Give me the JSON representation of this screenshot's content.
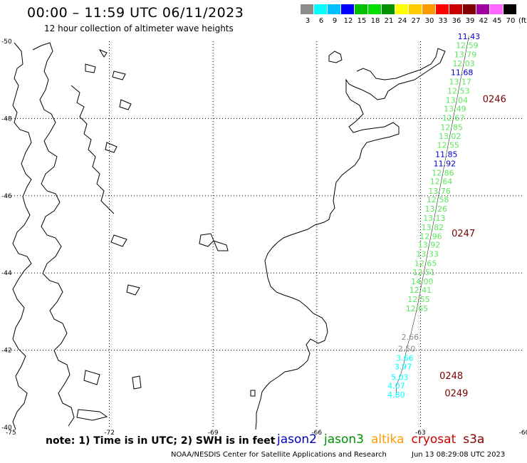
{
  "header": {
    "title": "00:00 – 11:59 UTC 06/11/2023",
    "subtitle": "12 hour collection of altimeter wave heights"
  },
  "color_scale": {
    "labels": [
      "3",
      "6",
      "9",
      "12",
      "15",
      "18",
      "21",
      "24",
      "27",
      "30",
      "33",
      "36",
      "39",
      "42",
      "45",
      "70"
    ],
    "unit": "(ft)",
    "colors": [
      "#8c8c8c",
      "#00ffff",
      "#00bfff",
      "#0000ff",
      "#00c000",
      "#00e000",
      "#009000",
      "#ffff00",
      "#ffcc00",
      "#ff9900",
      "#ff0000",
      "#c80000",
      "#800000",
      "#a000a0",
      "#ff66ff",
      "#000000"
    ]
  },
  "chart_data": {
    "type": "scatter",
    "title": "00:00 – 11:59 UTC 06/11/2023",
    "subtitle": "12 hour collection of altimeter wave heights",
    "xlim": [
      -75,
      -60
    ],
    "ylim": [
      -50,
      -40
    ],
    "x_ticks": [
      "-75",
      "-72",
      "-69",
      "-66",
      "-63",
      "-60"
    ],
    "y_ticks": [
      "-40",
      "-42",
      "-44",
      "-46",
      "-48",
      "-50"
    ],
    "grid": true,
    "points": [
      {
        "lon": -63.7,
        "lat": -40.85,
        "swh": "4.80",
        "color": "#00ffff"
      },
      {
        "lon": -63.7,
        "lat": -41.08,
        "swh": "4.07",
        "color": "#00ffff"
      },
      {
        "lon": -63.6,
        "lat": -41.3,
        "swh": "5.03",
        "color": "#00ffff"
      },
      {
        "lon": -63.5,
        "lat": -41.58,
        "swh": "3.97",
        "color": "#00ffff"
      },
      {
        "lon": -63.45,
        "lat": -41.8,
        "swh": "3.66",
        "color": "#00ffff"
      },
      {
        "lon": -63.4,
        "lat": -42.04,
        "swh": "2.50",
        "color": "#8c8c8c"
      },
      {
        "lon": -63.3,
        "lat": -42.34,
        "swh": "2.66",
        "color": "#8c8c8c"
      },
      {
        "lon": -63.1,
        "lat": -43.08,
        "swh": "12.65",
        "color": "#5ce65c"
      },
      {
        "lon": -63.05,
        "lat": -43.32,
        "swh": "12.55",
        "color": "#5ce65c"
      },
      {
        "lon": -63.0,
        "lat": -43.56,
        "swh": "12.41",
        "color": "#5ce65c"
      },
      {
        "lon": -62.95,
        "lat": -43.78,
        "swh": "14.00",
        "color": "#5ce65c"
      },
      {
        "lon": -62.9,
        "lat": -44.02,
        "swh": "12.51",
        "color": "#5ce65c"
      },
      {
        "lon": -62.85,
        "lat": -44.25,
        "swh": "12.65",
        "color": "#5ce65c"
      },
      {
        "lon": -62.8,
        "lat": -44.49,
        "swh": "13.33",
        "color": "#5ce65c"
      },
      {
        "lon": -62.75,
        "lat": -44.73,
        "swh": "13.92",
        "color": "#5ce65c"
      },
      {
        "lon": -62.7,
        "lat": -44.95,
        "swh": "12.96",
        "color": "#5ce65c"
      },
      {
        "lon": -62.65,
        "lat": -45.18,
        "swh": "13.82",
        "color": "#5ce65c"
      },
      {
        "lon": -62.6,
        "lat": -45.42,
        "swh": "13.13",
        "color": "#5ce65c"
      },
      {
        "lon": -62.55,
        "lat": -45.66,
        "swh": "13.26",
        "color": "#5ce65c"
      },
      {
        "lon": -62.5,
        "lat": -45.9,
        "swh": "12.58",
        "color": "#5ce65c"
      },
      {
        "lon": -62.45,
        "lat": -46.13,
        "swh": "13.76",
        "color": "#5ce65c"
      },
      {
        "lon": -62.4,
        "lat": -46.37,
        "swh": "12.64",
        "color": "#5ce65c"
      },
      {
        "lon": -62.35,
        "lat": -46.6,
        "swh": "12.86",
        "color": "#5ce65c"
      },
      {
        "lon": -62.3,
        "lat": -46.84,
        "swh": "11.92",
        "color": "#0000cc"
      },
      {
        "lon": -62.25,
        "lat": -47.08,
        "swh": "11.85",
        "color": "#0000cc"
      },
      {
        "lon": -62.2,
        "lat": -47.32,
        "swh": "12.55",
        "color": "#5ce65c"
      },
      {
        "lon": -62.15,
        "lat": -47.55,
        "swh": "13.02",
        "color": "#5ce65c"
      },
      {
        "lon": -62.1,
        "lat": -47.78,
        "swh": "12.85",
        "color": "#5ce65c"
      },
      {
        "lon": -62.05,
        "lat": -48.02,
        "swh": "12.67",
        "color": "#5ce65c"
      },
      {
        "lon": -62.0,
        "lat": -48.26,
        "swh": "13.49",
        "color": "#5ce65c"
      },
      {
        "lon": -61.95,
        "lat": -48.48,
        "swh": "13.04",
        "color": "#5ce65c"
      },
      {
        "lon": -61.9,
        "lat": -48.72,
        "swh": "12.53",
        "color": "#5ce65c"
      },
      {
        "lon": -61.85,
        "lat": -48.96,
        "swh": "13.17",
        "color": "#5ce65c"
      },
      {
        "lon": -61.8,
        "lat": -49.2,
        "swh": "11.68",
        "color": "#0000cc"
      },
      {
        "lon": -61.75,
        "lat": -49.43,
        "swh": "12.03",
        "color": "#5ce65c"
      },
      {
        "lon": -61.7,
        "lat": -49.66,
        "swh": "13.79",
        "color": "#5ce65c"
      },
      {
        "lon": -61.65,
        "lat": -49.9,
        "swh": "12.59",
        "color": "#5ce65c"
      },
      {
        "lon": -61.6,
        "lat": -50.13,
        "swh": "11.43",
        "color": "#0000cc"
      }
    ],
    "passes": [
      {
        "lon": -62.3,
        "lat": -40.88,
        "label": "0249"
      },
      {
        "lon": -62.45,
        "lat": -41.33,
        "label": "0248"
      },
      {
        "lon": -62.1,
        "lat": -45.02,
        "label": "0247"
      },
      {
        "lon": -61.2,
        "lat": -48.5,
        "label": "0246"
      }
    ]
  },
  "footer": {
    "note": "note: 1) Time is in UTC; 2) SWH is in feet",
    "satellites": [
      {
        "name": "jason2",
        "color": "#0000cc"
      },
      {
        "name": "jason3",
        "color": "#009000"
      },
      {
        "name": "altika",
        "color": "#ff9900"
      },
      {
        "name": "cryosat",
        "color": "#cc0000"
      },
      {
        "name": "s3a",
        "color": "#800000"
      }
    ],
    "credit": "NOAA/NESDIS Center for Satellite Applications and Research",
    "timestamp": "Jun 13 08:29:08 UTC 2023"
  }
}
